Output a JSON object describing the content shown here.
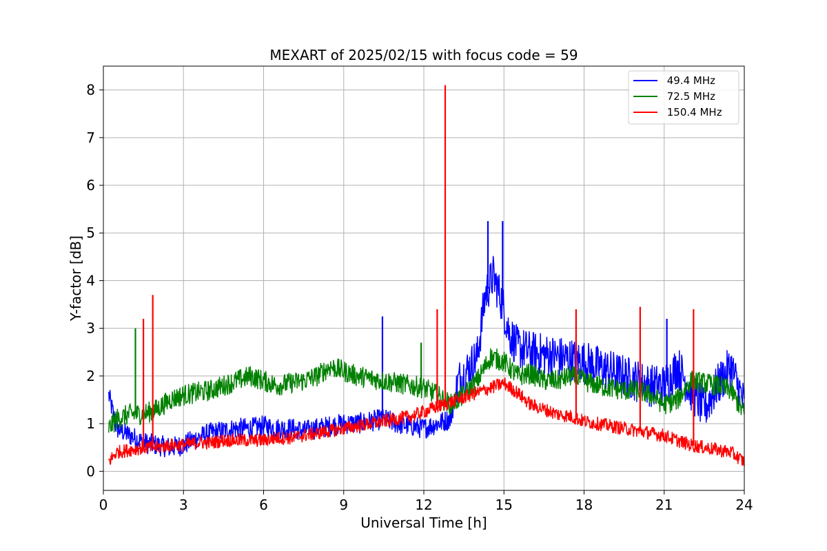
{
  "chart_data": {
    "type": "line",
    "title": "MEXART of 2025/02/15 with focus code = 59",
    "xlabel": "Universal Time [h]",
    "ylabel": "Y-factor [dB]",
    "xlim": [
      0,
      24
    ],
    "ylim": [
      -0.4,
      8.5
    ],
    "xticks": [
      0,
      3,
      6,
      9,
      12,
      15,
      18,
      21,
      24
    ],
    "yticks": [
      0,
      1,
      2,
      3,
      4,
      5,
      6,
      7,
      8
    ],
    "grid": true,
    "legend_position": "top-right",
    "colors": {
      "s49": "#0000ff",
      "s72": "#008000",
      "s150": "#ff0000",
      "grid": "#b0b0b0"
    },
    "series": [
      {
        "name": " 49.4 MHz",
        "color": "#0000ff",
        "x": [
          0.2,
          0.5,
          1,
          1.5,
          2,
          2.5,
          3,
          3.5,
          4,
          4.5,
          5,
          5.5,
          6,
          6.5,
          7,
          7.5,
          8,
          8.5,
          9,
          9.5,
          10,
          10.5,
          11,
          11.5,
          12,
          12.5,
          13,
          13.3,
          13.6,
          14,
          14.3,
          14.6,
          14.9,
          15.2,
          15.5,
          16,
          16.5,
          17,
          17.5,
          18,
          18.5,
          19,
          19.5,
          20,
          20.5,
          21,
          21.5,
          22,
          22.5,
          23,
          23.5,
          24
        ],
        "y": [
          1.6,
          0.9,
          0.75,
          0.6,
          0.55,
          0.5,
          0.55,
          0.7,
          0.8,
          0.85,
          0.9,
          0.9,
          0.95,
          0.9,
          0.9,
          0.85,
          0.9,
          0.95,
          1.0,
          1.0,
          1.05,
          1.1,
          1.0,
          0.95,
          0.9,
          1.0,
          1.1,
          1.9,
          2.1,
          2.4,
          3.7,
          4.1,
          3.6,
          2.9,
          2.6,
          2.5,
          2.45,
          2.4,
          2.35,
          2.3,
          2.2,
          2.1,
          2.0,
          1.9,
          1.8,
          1.8,
          2.2,
          1.7,
          1.3,
          1.8,
          2.2,
          1.4
        ],
        "spikes": [
          [
            10.45,
            3.25
          ],
          [
            14.4,
            5.25
          ],
          [
            14.95,
            5.25
          ],
          [
            21.1,
            3.2
          ]
        ]
      },
      {
        "name": " 72.5 MHz",
        "color": "#008000",
        "x": [
          0.2,
          0.5,
          1,
          1.5,
          2,
          2.5,
          3,
          3.5,
          4,
          4.5,
          5,
          5.5,
          6,
          6.5,
          7,
          7.5,
          8,
          8.5,
          9,
          9.5,
          10,
          10.5,
          11,
          11.5,
          12,
          12.5,
          13,
          13.5,
          14,
          14.5,
          15,
          15.5,
          16,
          16.5,
          17,
          17.5,
          18,
          18.5,
          19,
          19.5,
          20,
          20.5,
          21,
          21.5,
          22,
          22.5,
          23,
          23.5,
          24
        ],
        "y": [
          0.9,
          1.1,
          1.2,
          1.2,
          1.3,
          1.5,
          1.6,
          1.65,
          1.7,
          1.8,
          1.9,
          2.0,
          1.9,
          1.8,
          1.85,
          1.9,
          2.0,
          2.2,
          2.1,
          2.0,
          1.95,
          1.9,
          1.85,
          1.8,
          1.75,
          1.6,
          1.4,
          1.6,
          1.9,
          2.4,
          2.3,
          2.0,
          2.05,
          1.9,
          1.9,
          2.0,
          1.9,
          1.8,
          1.75,
          1.7,
          1.7,
          1.6,
          1.4,
          1.5,
          1.9,
          1.85,
          1.8,
          1.7,
          1.2
        ],
        "spikes": [
          [
            1.2,
            3.0
          ],
          [
            11.9,
            2.7
          ]
        ]
      },
      {
        "name": " 150.4 MHz",
        "color": "#ff0000",
        "x": [
          0.2,
          0.5,
          1,
          1.5,
          2,
          2.5,
          3,
          3.5,
          4,
          4.5,
          5,
          5.5,
          6,
          6.5,
          7,
          7.5,
          8,
          8.5,
          9,
          9.5,
          10,
          10.5,
          11,
          11.5,
          12,
          12.5,
          13,
          13.5,
          14,
          14.5,
          15,
          15.5,
          16,
          16.5,
          17,
          17.5,
          18,
          18.5,
          19,
          19.5,
          20,
          20.5,
          21,
          21.5,
          22,
          22.5,
          23,
          23.5,
          24
        ],
        "y": [
          0.2,
          0.4,
          0.45,
          0.5,
          0.5,
          0.55,
          0.55,
          0.6,
          0.6,
          0.65,
          0.65,
          0.65,
          0.65,
          0.7,
          0.7,
          0.75,
          0.8,
          0.85,
          0.9,
          0.95,
          1.0,
          1.05,
          1.1,
          1.15,
          1.25,
          1.35,
          1.45,
          1.55,
          1.65,
          1.75,
          1.85,
          1.65,
          1.4,
          1.3,
          1.2,
          1.15,
          1.05,
          1.0,
          0.95,
          0.9,
          0.85,
          0.8,
          0.75,
          0.65,
          0.55,
          0.5,
          0.45,
          0.4,
          0.2
        ],
        "spikes": [
          [
            1.5,
            3.2
          ],
          [
            1.85,
            3.7
          ],
          [
            12.5,
            3.4
          ],
          [
            12.8,
            8.1
          ],
          [
            17.7,
            3.4
          ],
          [
            20.1,
            3.45
          ],
          [
            22.1,
            3.4
          ]
        ]
      }
    ]
  }
}
